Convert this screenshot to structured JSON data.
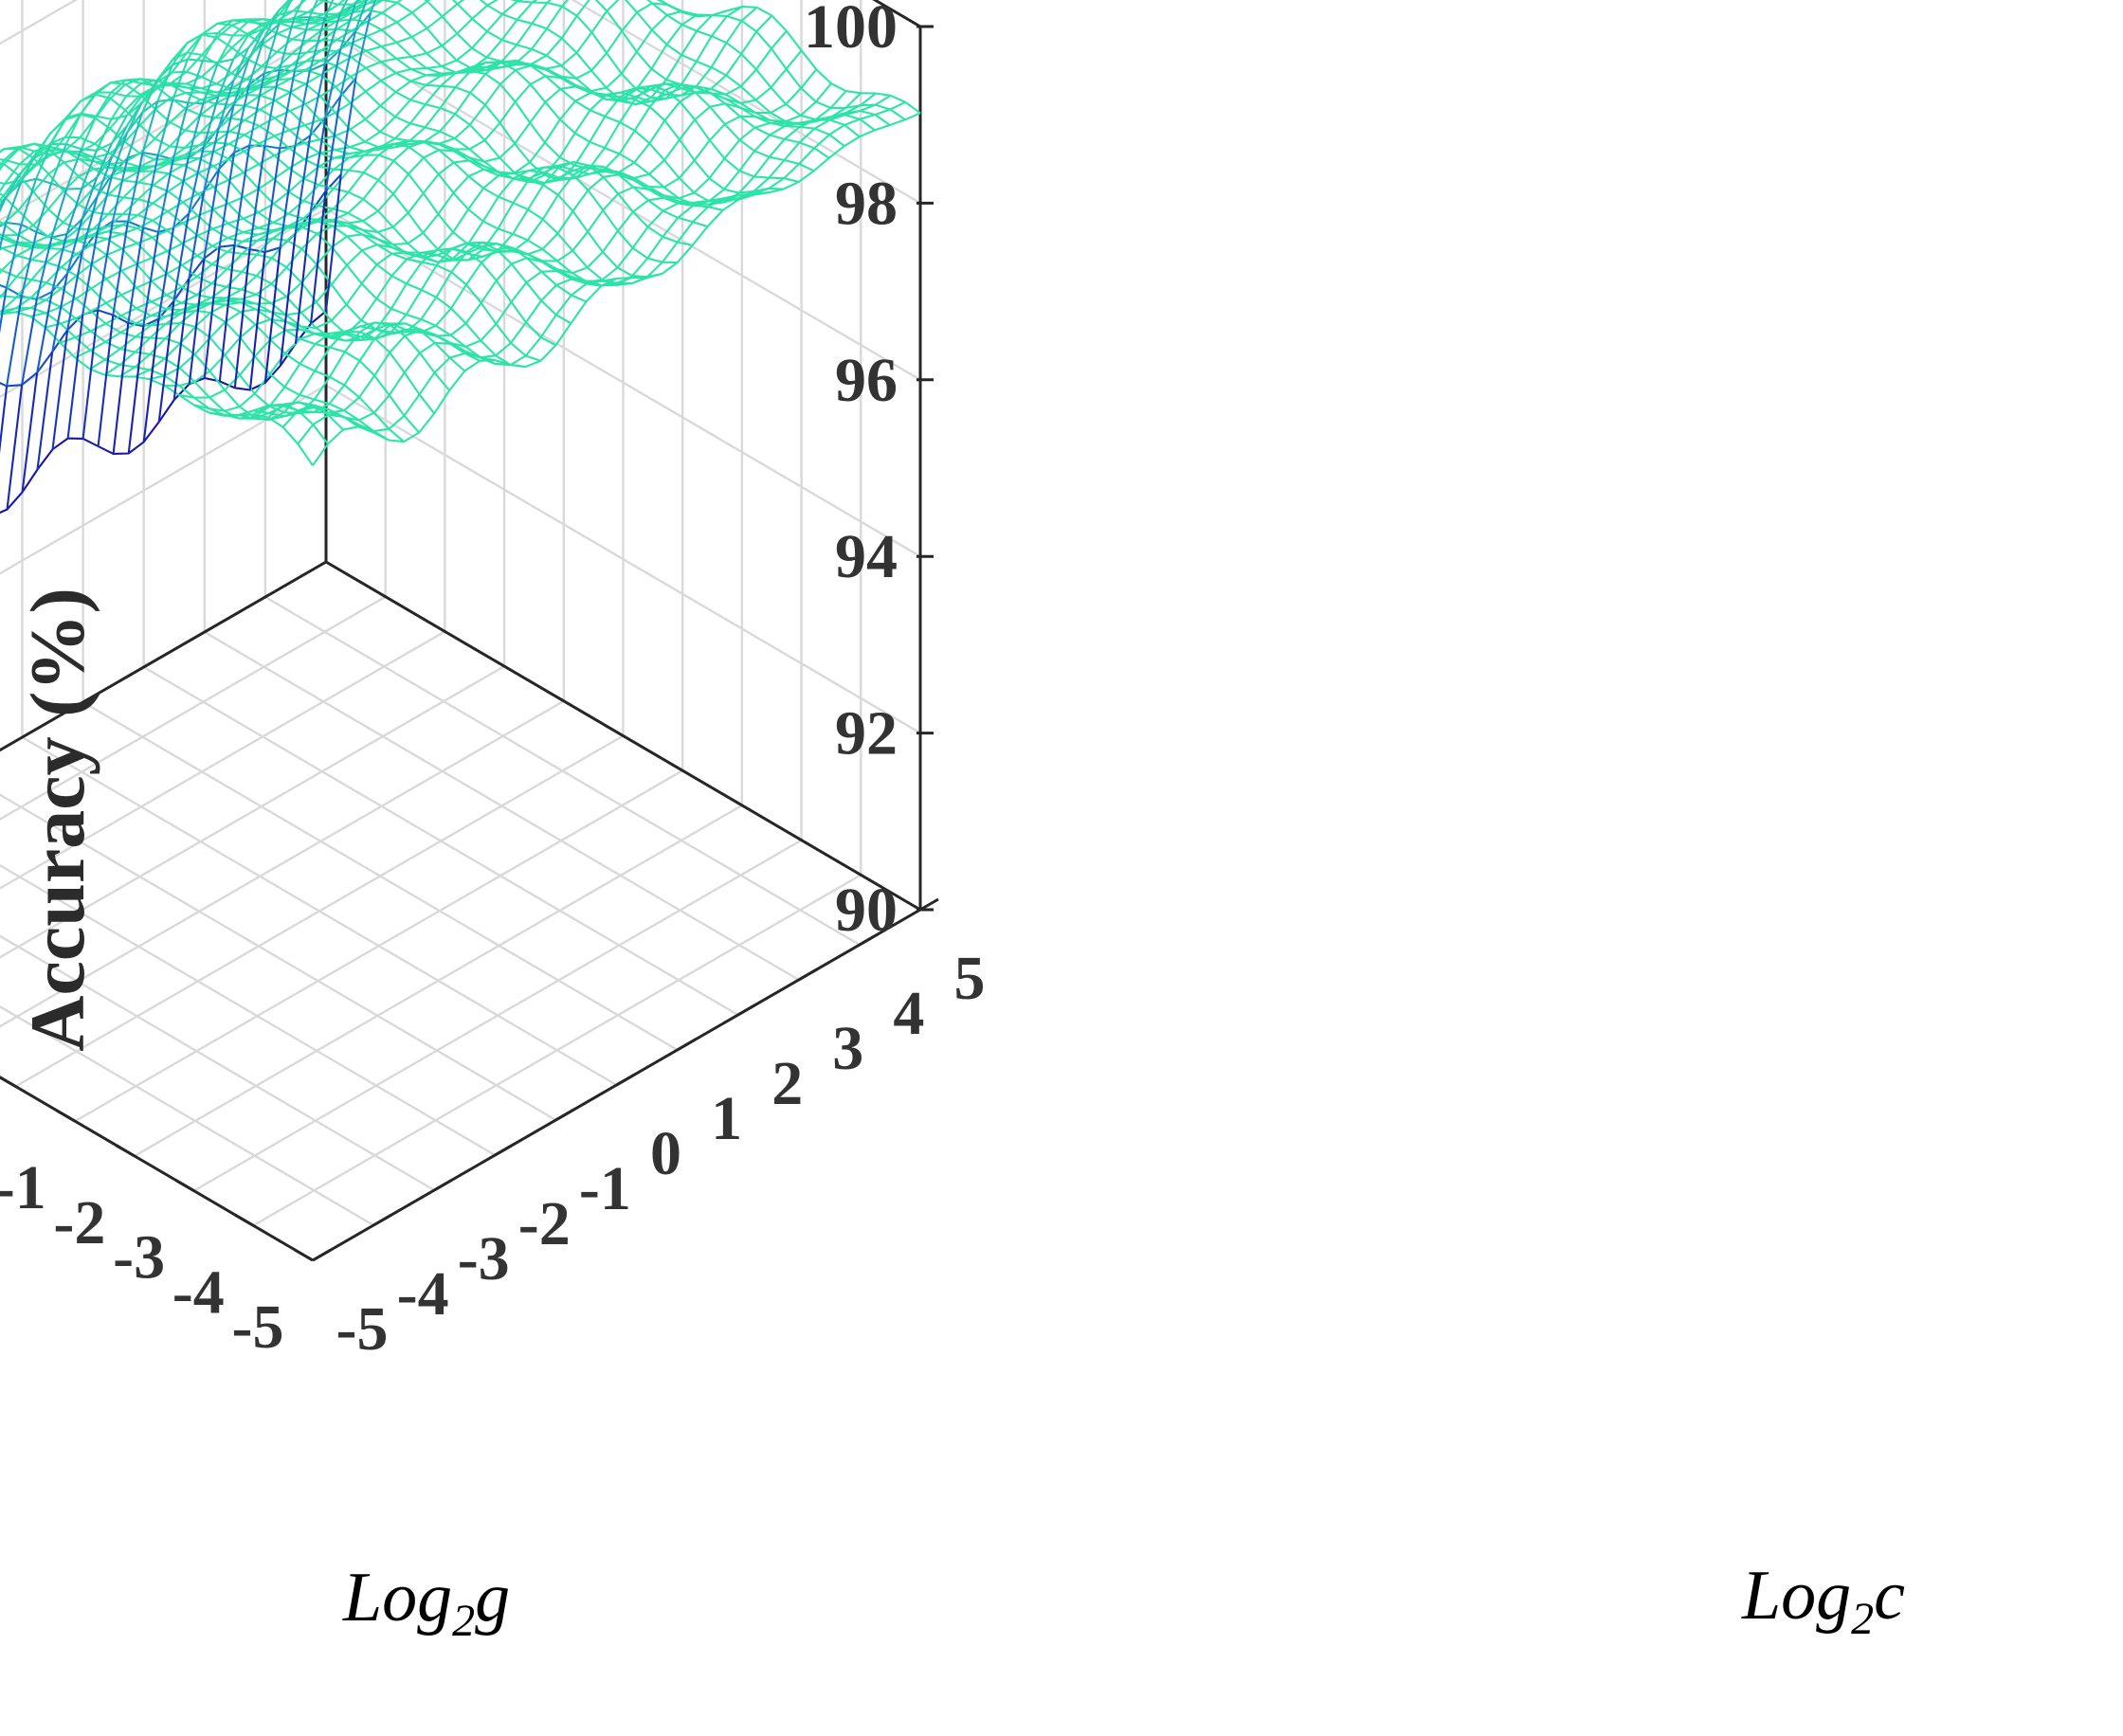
{
  "chart_data": {
    "type": "surface",
    "title": "",
    "xlabel": "Log2g",
    "ylabel": "Log2c",
    "zlabel": "Accuracy (%)",
    "xlim": [
      -5,
      5
    ],
    "ylim": [
      -5,
      5
    ],
    "zlim": [
      90,
      100
    ],
    "x_ticks": [
      "-5",
      "-4",
      "-3",
      "-2",
      "-1",
      "0",
      "1",
      "2",
      "3",
      "4",
      "5"
    ],
    "y_ticks": [
      "-5",
      "-4",
      "-3",
      "-2",
      "-1",
      "0",
      "1",
      "2",
      "3",
      "4",
      "5"
    ],
    "z_ticks": [
      "90",
      "92",
      "94",
      "96",
      "98",
      "100"
    ],
    "grid": true,
    "mesh_resolution": 0.25,
    "surface_points": [
      {
        "g": 5,
        "c": -5,
        "accuracy": 93.5
      },
      {
        "g": 4.5,
        "c": -5,
        "accuracy": 95.0
      },
      {
        "g": 4,
        "c": -5,
        "accuracy": 96.2
      },
      {
        "g": 3,
        "c": -5,
        "accuracy": 97.6
      },
      {
        "g": 2,
        "c": -5,
        "accuracy": 98.2
      },
      {
        "g": 0,
        "c": -5,
        "accuracy": 98.6
      },
      {
        "g": -5,
        "c": -5,
        "accuracy": 99.0
      },
      {
        "g": 5,
        "c": 5,
        "accuracy": 97.9
      },
      {
        "g": 0,
        "c": 5,
        "accuracy": 98.6
      },
      {
        "g": -5,
        "c": 5,
        "accuracy": 99.0
      },
      {
        "g": 5,
        "c": 0,
        "accuracy": 97.8
      },
      {
        "g": 0,
        "c": 0,
        "accuracy": 98.5
      },
      {
        "g": -5,
        "c": 0,
        "accuracy": 99.0
      }
    ],
    "colormap": {
      "low": "#1a1aa8",
      "mid": "#1a8fd8",
      "high": "#2ee3a8"
    }
  },
  "labels": {
    "zlabel": "Accuracy (%)",
    "xlabel_base": "Log",
    "xlabel_sub": "2",
    "xlabel_var": "g",
    "ylabel_base": "Log",
    "ylabel_sub": "2",
    "ylabel_var": "c"
  }
}
